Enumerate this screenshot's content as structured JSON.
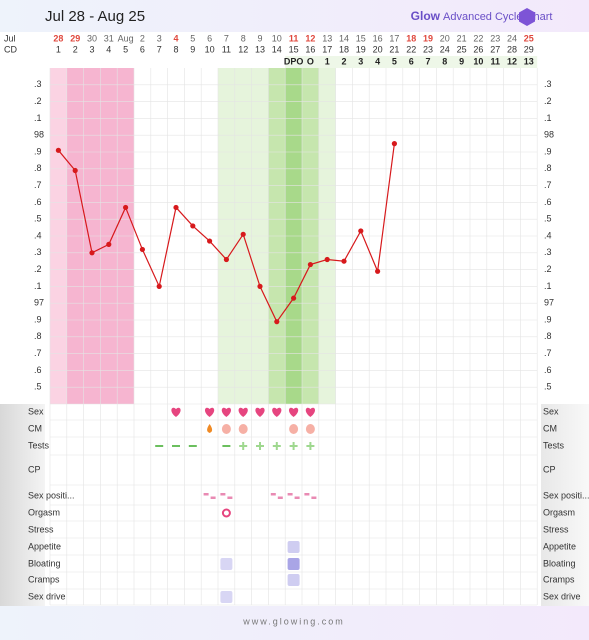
{
  "header": {
    "brand_glow": "Glow",
    "brand_rest": "Advanced Cycle Chart"
  },
  "footer": "www.glowing.com",
  "chart_data": {
    "type": "line",
    "title": "Jul 28 - Aug 25",
    "row_labels": {
      "date": "Jul",
      "cd": "CD"
    },
    "categories": [
      "28",
      "29",
      "30",
      "31",
      "Aug",
      "2",
      "3",
      "4",
      "5",
      "6",
      "7",
      "8",
      "9",
      "10",
      "11",
      "12",
      "13",
      "14",
      "15",
      "16",
      "17",
      "18",
      "19",
      "20",
      "21",
      "22",
      "23",
      "24",
      "25"
    ],
    "cycle_days": [
      1,
      2,
      3,
      4,
      5,
      6,
      7,
      8,
      9,
      10,
      11,
      12,
      13,
      14,
      15,
      16,
      17,
      18,
      19,
      20,
      21,
      22,
      23,
      24,
      25,
      26,
      27,
      28,
      29
    ],
    "dpo": [
      null,
      null,
      null,
      null,
      null,
      null,
      null,
      null,
      null,
      null,
      null,
      null,
      null,
      null,
      "DPO",
      "O",
      1,
      2,
      3,
      4,
      5,
      6,
      7,
      8,
      9,
      10,
      11,
      12,
      13
    ],
    "series": [
      {
        "name": "Temperature",
        "color": "#d7191c",
        "values": [
          97.91,
          97.79,
          97.3,
          97.35,
          97.57,
          97.32,
          97.1,
          97.57,
          97.46,
          97.37,
          97.26,
          97.41,
          97.1,
          96.89,
          97.03,
          97.23,
          97.26,
          97.25,
          97.43,
          97.19,
          97.95,
          null,
          null,
          null,
          null,
          null,
          null,
          null,
          null
        ]
      }
    ],
    "ylim": [
      96.4,
      98.4
    ],
    "yticks": [
      {
        "value": 98.3,
        "label": ".3"
      },
      {
        "value": 98.2,
        "label": ".2"
      },
      {
        "value": 98.1,
        "label": ".1"
      },
      98,
      {
        "value": 97.9,
        "label": ".9"
      },
      {
        "value": 97.8,
        "label": ".8"
      },
      {
        "value": 97.7,
        "label": ".7"
      },
      {
        "value": 97.6,
        "label": ".6"
      },
      {
        "value": 97.5,
        "label": ".5"
      },
      {
        "value": 97.4,
        "label": ".4"
      },
      {
        "value": 97.3,
        "label": ".3"
      },
      {
        "value": 97.2,
        "label": ".2"
      },
      {
        "value": 97.1,
        "label": ".1"
      },
      97,
      {
        "value": 96.9,
        "label": ".9"
      },
      {
        "value": 96.8,
        "label": ".8"
      },
      {
        "value": 96.7,
        "label": ".7"
      },
      {
        "value": 96.6,
        "label": ".6"
      },
      {
        "value": 96.5,
        "label": ".5"
      }
    ],
    "grid": true,
    "symptoms": [
      "Sex",
      "CM",
      "Tests",
      "CP",
      "Sex positi...",
      "Orgasm",
      "Stress",
      "Appetite",
      "Bloating",
      "Cramps",
      "Sex drive"
    ]
  }
}
